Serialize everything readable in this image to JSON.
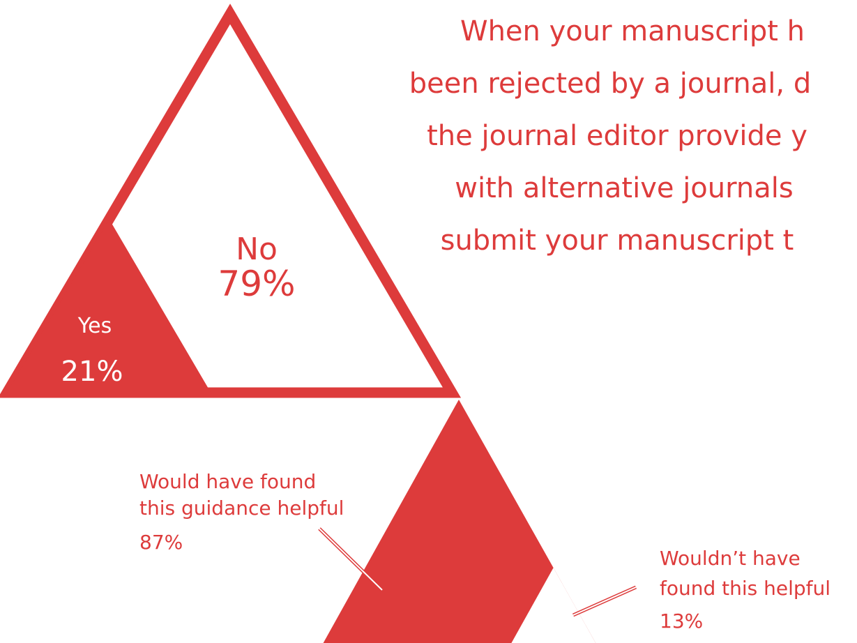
{
  "colors": {
    "accent": "#dd3b3b",
    "background": "#ffffff"
  },
  "chart_data": [
    {
      "type": "pie",
      "title_lines": [
        "When your manuscript h",
        "been rejected by a journal, d",
        "the journal editor provide y",
        "with alternative journals",
        "submit your manuscript t"
      ],
      "categories": [
        "Yes",
        "No"
      ],
      "values": [
        21,
        79
      ],
      "value_labels": [
        "21%",
        "79%"
      ]
    },
    {
      "type": "pie",
      "categories": [
        "Would have found this guidance helpful",
        "Wouldn’t have found this helpful"
      ],
      "label_lines": [
        [
          "Would have found",
          "this guidance helpful"
        ],
        [
          "Wouldn’t have",
          "found this helpful"
        ]
      ],
      "values": [
        87,
        13
      ],
      "value_labels": [
        "87%",
        "13%"
      ]
    }
  ]
}
